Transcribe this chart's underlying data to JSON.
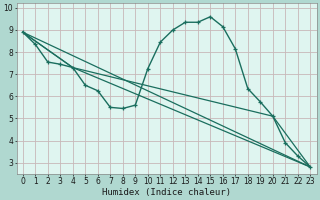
{
  "xlabel": "Humidex (Indice chaleur)",
  "xlim": [
    -0.5,
    23.5
  ],
  "ylim": [
    2.5,
    10.2
  ],
  "xticks": [
    0,
    1,
    2,
    3,
    4,
    5,
    6,
    7,
    8,
    9,
    10,
    11,
    12,
    13,
    14,
    15,
    16,
    17,
    18,
    19,
    20,
    21,
    22,
    23
  ],
  "yticks": [
    3,
    4,
    5,
    6,
    7,
    8,
    9,
    10
  ],
  "bg_outer": "#b0d8d0",
  "bg_plot": "#dff5f0",
  "grid_color": "#c8b8b8",
  "line_color": "#1a6e5e",
  "lines": [
    {
      "x": [
        0,
        1,
        2,
        3,
        4,
        5,
        6,
        7,
        8,
        9,
        10,
        11,
        12,
        13,
        14,
        15,
        16,
        17,
        18,
        19,
        20,
        21,
        22,
        23
      ],
      "y": [
        8.9,
        8.35,
        7.55,
        7.45,
        7.3,
        6.5,
        6.25,
        5.5,
        5.45,
        5.6,
        7.25,
        8.45,
        9.0,
        9.35,
        9.35,
        9.6,
        9.15,
        8.15,
        6.35,
        5.75,
        5.1,
        3.9,
        3.3,
        2.8
      ],
      "marker": true,
      "lw": 1.0
    },
    {
      "x": [
        0,
        23
      ],
      "y": [
        8.9,
        2.8
      ],
      "marker": false,
      "lw": 0.9
    },
    {
      "x": [
        0,
        4,
        23
      ],
      "y": [
        8.9,
        7.3,
        2.8
      ],
      "marker": false,
      "lw": 0.9
    },
    {
      "x": [
        0,
        4,
        20,
        23
      ],
      "y": [
        8.9,
        7.3,
        5.1,
        2.8
      ],
      "marker": false,
      "lw": 0.9
    }
  ]
}
